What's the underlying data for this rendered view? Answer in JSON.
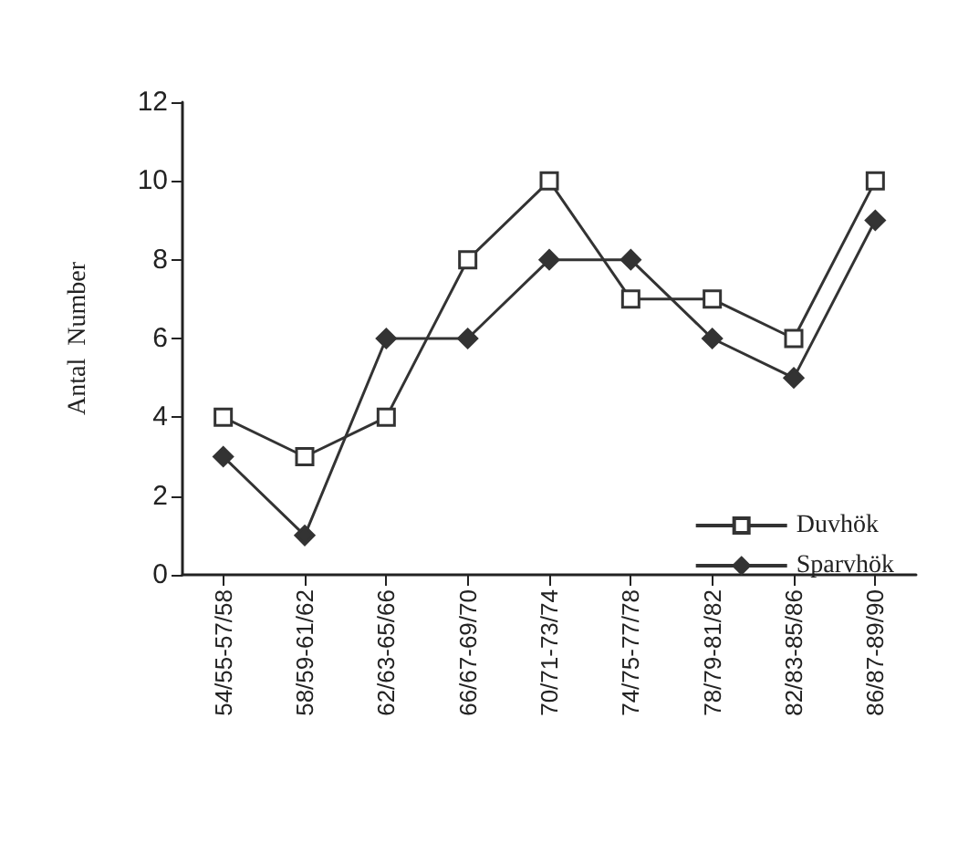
{
  "chart_data": {
    "type": "line",
    "ylabel": "Antal  Number",
    "categories": [
      "54/55-57/58",
      "58/59-61/62",
      "62/63-65/66",
      "66/67-69/70",
      "70/71-73/74",
      "74/75-77/78",
      "78/79-81/82",
      "82/83-85/86",
      "86/87-89/90"
    ],
    "series": [
      {
        "name": "Duvhök",
        "color": "#333333",
        "marker": "square",
        "values": [
          4,
          3,
          4,
          8,
          10,
          7,
          7,
          6,
          10
        ]
      },
      {
        "name": "Sparvhök",
        "color": "#333333",
        "marker": "diamond",
        "values": [
          3,
          1,
          6,
          6,
          8,
          8,
          6,
          5,
          9
        ]
      }
    ],
    "ylim": [
      0,
      12
    ],
    "yticks": [
      0,
      2,
      4,
      6,
      8,
      10,
      12
    ],
    "grid": false,
    "legend": "bottom right",
    "line_style": "solid"
  }
}
